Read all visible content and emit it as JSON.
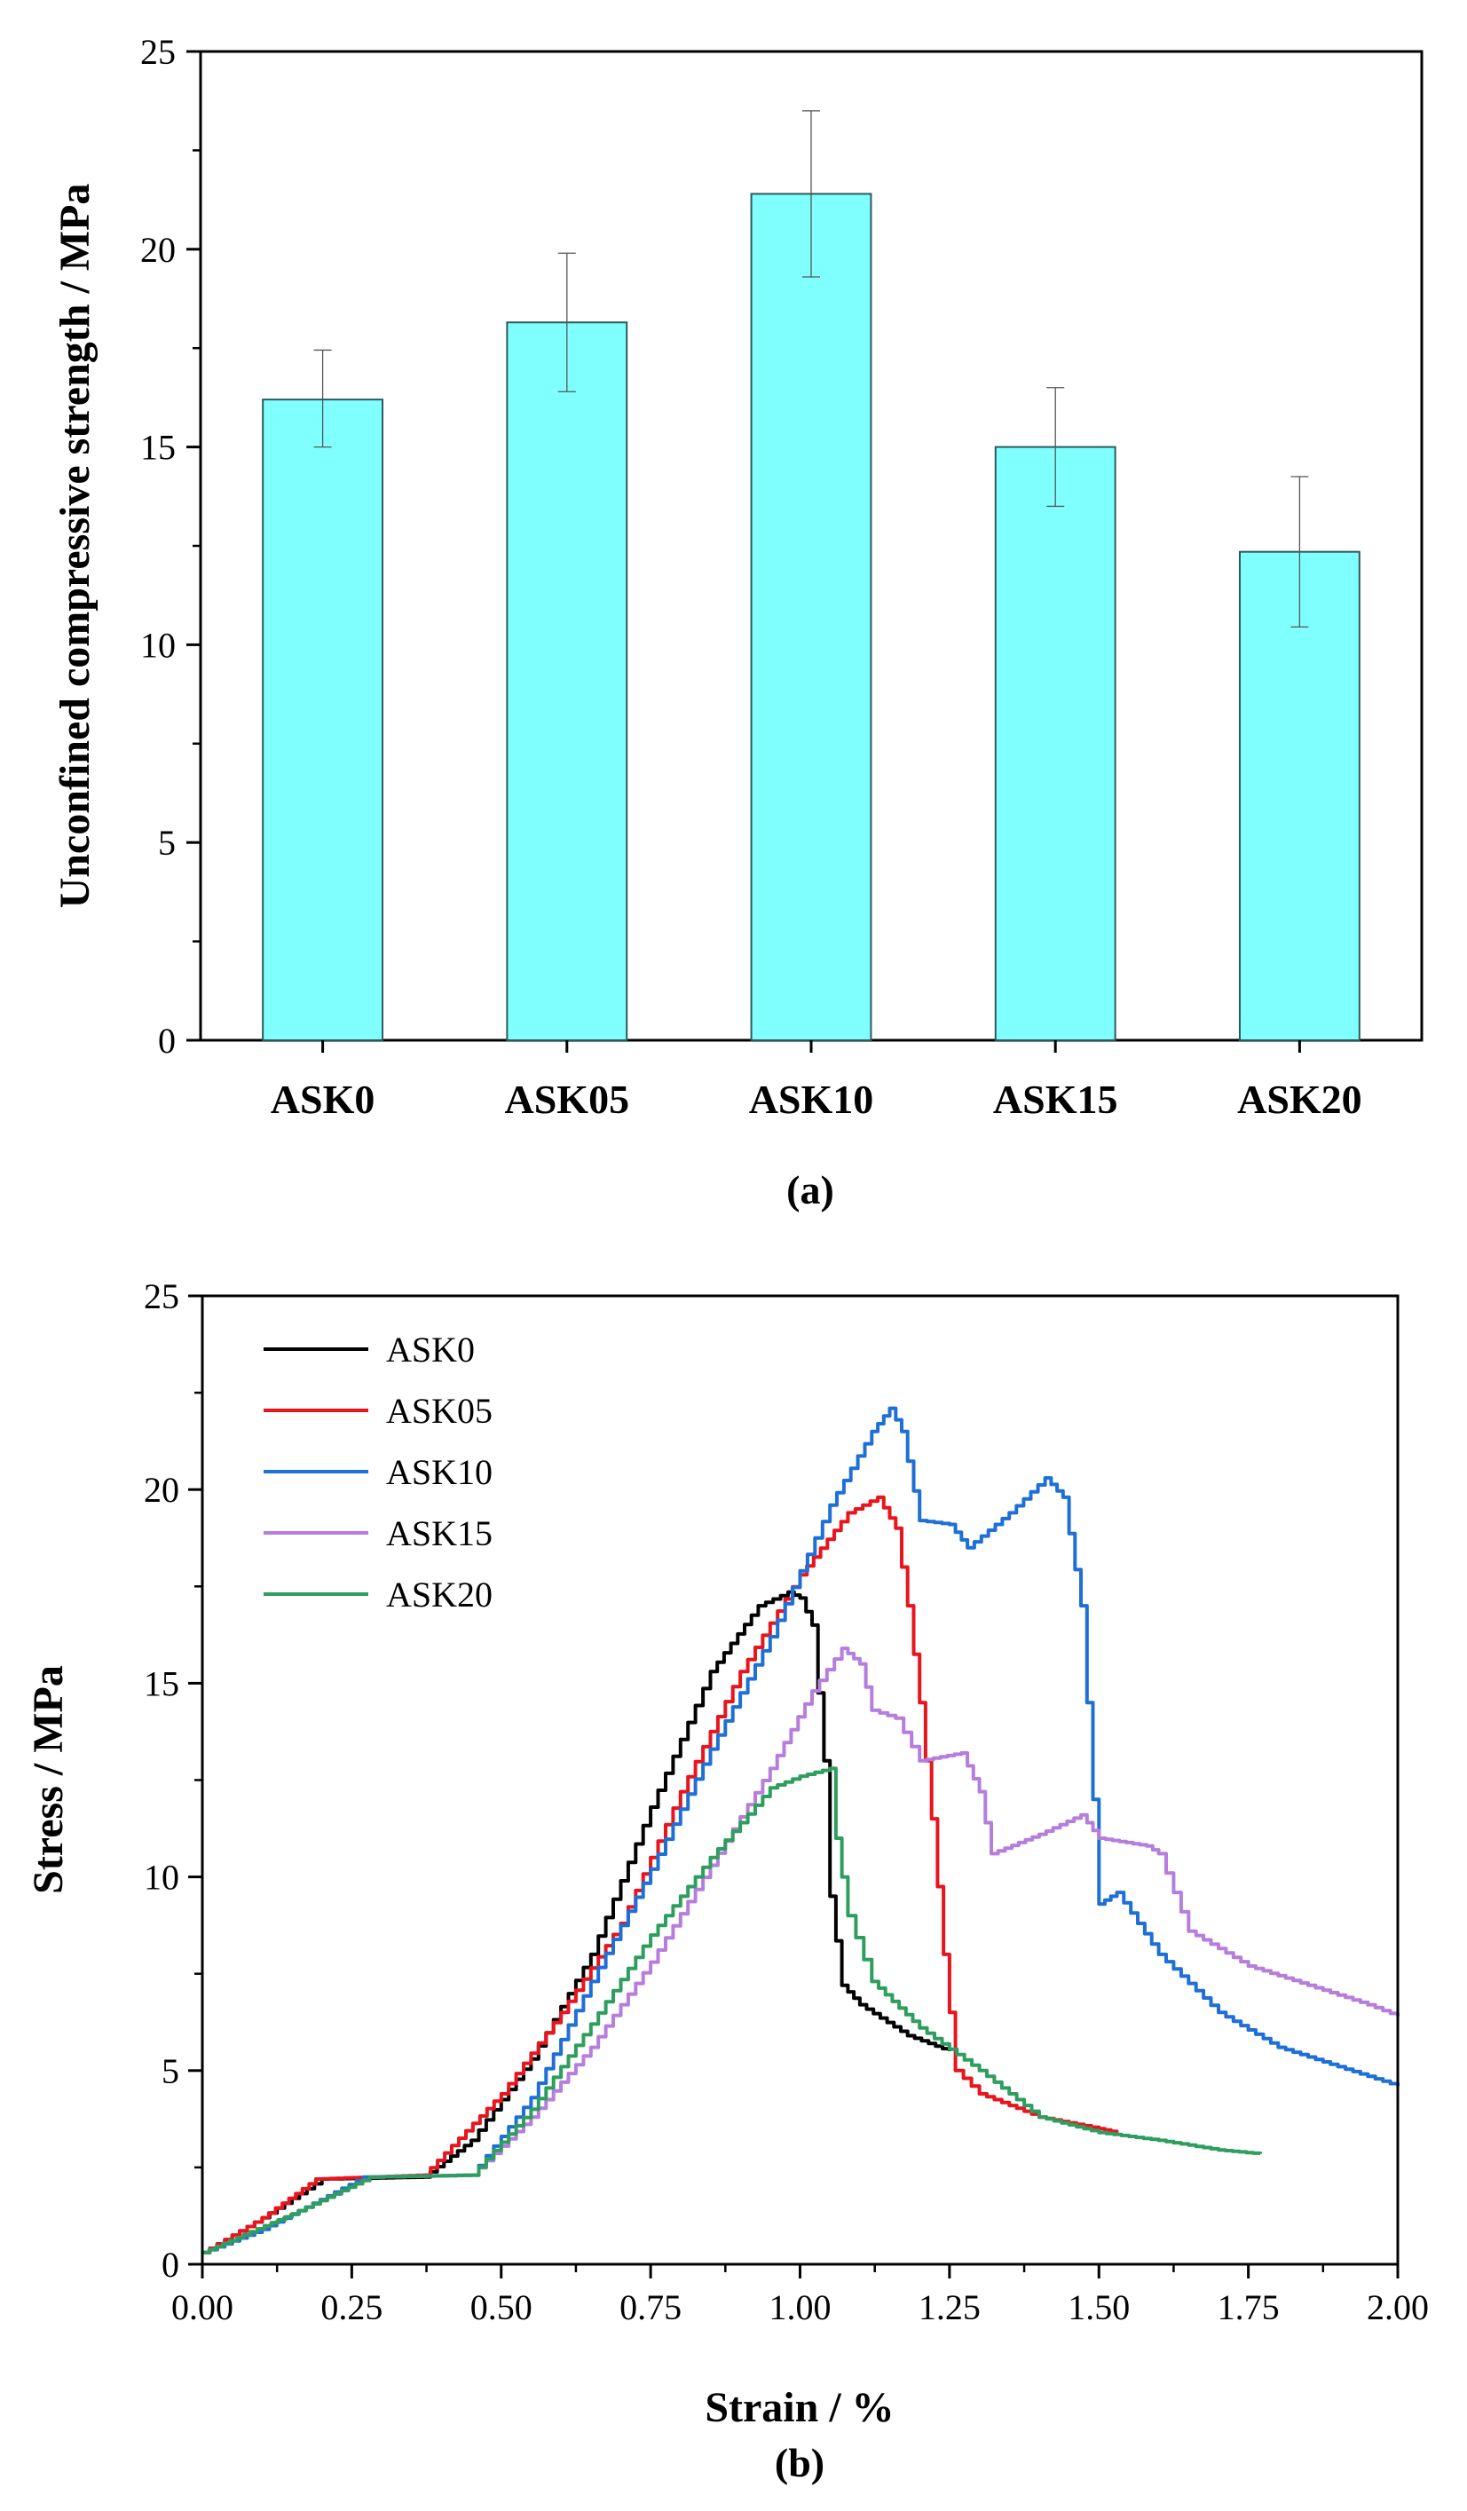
{
  "chart_data": [
    {
      "type": "bar",
      "title": "",
      "panel_label": "(a)",
      "xlabel": "",
      "ylabel": "Unconfined compressive strength / MPa",
      "categories": [
        "ASK0",
        "ASK05",
        "ASK10",
        "ASK15",
        "ASK20"
      ],
      "values": [
        16.2,
        18.15,
        21.4,
        15.0,
        12.35
      ],
      "errors_low": [
        15.0,
        16.4,
        19.3,
        13.5,
        10.45
      ],
      "errors_high": [
        17.45,
        19.9,
        23.5,
        16.5,
        14.25
      ],
      "ylim": [
        0,
        25
      ],
      "yticks": [
        0,
        5,
        10,
        15,
        20,
        25
      ],
      "ytick_labels": [
        "0",
        "5",
        "10",
        "15",
        "20",
        "25"
      ],
      "bar_color": "#80FFFF",
      "grid": false
    },
    {
      "type": "line",
      "title": "",
      "panel_label": "(b)",
      "xlabel": "Strain / %",
      "ylabel": "Stress / MPa",
      "xlim": [
        0,
        2
      ],
      "ylim": [
        0,
        25
      ],
      "xticks": [
        0,
        0.25,
        0.5,
        0.75,
        1.0,
        1.25,
        1.5,
        1.75,
        2.0
      ],
      "xtick_labels": [
        "0.00",
        "0.25",
        "0.50",
        "0.75",
        "1.00",
        "1.25",
        "1.50",
        "1.75",
        "2.00"
      ],
      "yticks": [
        0,
        5,
        10,
        15,
        20,
        25
      ],
      "ytick_labels": [
        "0",
        "5",
        "10",
        "15",
        "20",
        "25"
      ],
      "legend_position": "top-left",
      "grid": false,
      "series": [
        {
          "name": "ASK0",
          "color": "#000000",
          "x": [
            0,
            0.1,
            0.2,
            0.37,
            0.45,
            0.55,
            0.65,
            0.75,
            0.85,
            0.93,
            0.98,
            1.0,
            1.02,
            1.04,
            1.05,
            1.07,
            1.1,
            1.18,
            1.25
          ],
          "y": [
            0.3,
            1.2,
            2.2,
            2.25,
            3.2,
            5.3,
            8.0,
            11.8,
            15.3,
            17.0,
            17.35,
            17.2,
            16.5,
            13.0,
            9.5,
            7.2,
            6.7,
            5.9,
            5.5
          ]
        },
        {
          "name": "ASK05",
          "color": "#E8141E",
          "x": [
            0,
            0.1,
            0.19,
            0.37,
            0.5,
            0.6,
            0.7,
            0.8,
            0.9,
            1.0,
            1.08,
            1.13,
            1.16,
            1.18,
            1.2,
            1.22,
            1.24,
            1.26,
            1.3,
            1.4,
            1.5,
            1.53
          ],
          "y": [
            0.3,
            1.2,
            2.2,
            2.3,
            4.4,
            6.5,
            8.8,
            12.2,
            15.3,
            17.8,
            19.4,
            19.8,
            19.0,
            17.0,
            14.5,
            11.5,
            8.0,
            5.0,
            4.4,
            3.8,
            3.5,
            3.4
          ]
        },
        {
          "name": "ASK10",
          "color": "#1E6FD6",
          "x": [
            0,
            0.1,
            0.27,
            0.45,
            0.55,
            0.65,
            0.75,
            0.85,
            0.95,
            1.05,
            1.12,
            1.15,
            1.17,
            1.2,
            1.25,
            1.28,
            1.35,
            1.41,
            1.44,
            1.47,
            1.49,
            1.5,
            1.53,
            1.6,
            1.7,
            1.8,
            1.9,
            2.0
          ],
          "y": [
            0.3,
            0.9,
            2.25,
            2.3,
            4.3,
            7.3,
            10.2,
            13.3,
            16.2,
            19.6,
            21.5,
            22.1,
            21.5,
            19.2,
            19.1,
            18.5,
            19.4,
            20.3,
            19.8,
            17.0,
            12.0,
            9.3,
            9.6,
            8.0,
            6.5,
            5.6,
            5.1,
            4.6
          ]
        },
        {
          "name": "ASK15",
          "color": "#B57EDC",
          "x": [
            0,
            0.15,
            0.28,
            0.45,
            0.55,
            0.65,
            0.75,
            0.85,
            0.95,
            1.02,
            1.07,
            1.1,
            1.12,
            1.16,
            1.2,
            1.27,
            1.3,
            1.32,
            1.4,
            1.47,
            1.5,
            1.58,
            1.6,
            1.65,
            1.75,
            1.85,
            1.95,
            2.0
          ],
          "y": [
            0.3,
            1.3,
            2.25,
            2.3,
            3.8,
            5.6,
            7.8,
            10.3,
            12.8,
            14.8,
            15.9,
            15.5,
            14.3,
            14.1,
            13.0,
            13.2,
            12.2,
            10.6,
            11.1,
            11.6,
            11.0,
            10.8,
            10.6,
            8.6,
            7.7,
            7.2,
            6.7,
            6.4
          ]
        },
        {
          "name": "ASK20",
          "color": "#2E9E5E",
          "x": [
            0,
            0.15,
            0.28,
            0.45,
            0.55,
            0.65,
            0.75,
            0.85,
            0.95,
            1.0,
            1.05,
            1.06,
            1.08,
            1.12,
            1.2,
            1.3,
            1.4,
            1.5,
            1.6,
            1.7,
            1.77
          ],
          "y": [
            0.3,
            1.3,
            2.25,
            2.3,
            4.0,
            6.2,
            8.5,
            10.5,
            12.3,
            12.6,
            12.8,
            11.0,
            9.0,
            7.3,
            6.1,
            5.0,
            3.8,
            3.4,
            3.2,
            2.95,
            2.85
          ]
        }
      ]
    }
  ]
}
